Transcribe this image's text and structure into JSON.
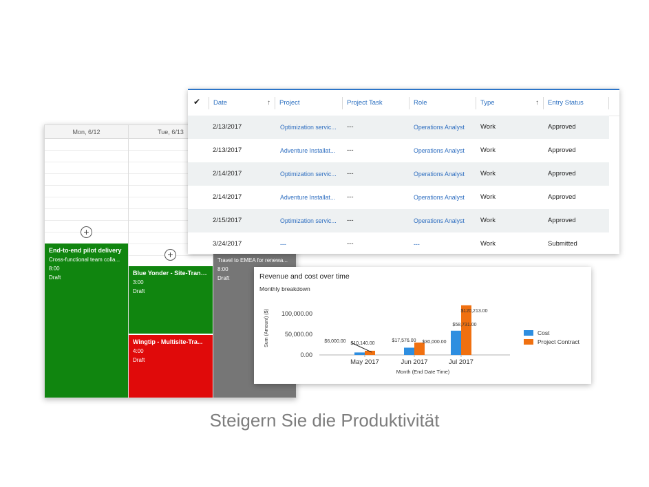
{
  "calendar": {
    "days": [
      "Mon, 6/12",
      "Tue, 6/13"
    ],
    "events": [
      {
        "title": "End-to-end pilot delivery",
        "line1": "Cross-functional team colla...",
        "hours": "8:00",
        "status": "Draft"
      },
      {
        "title": "Blue Yonder - Site-Trans...",
        "hours": "3:00",
        "status": "Draft"
      },
      {
        "title": "Wingtip - Multisite-Tra...",
        "hours": "4:00",
        "status": "Draft"
      },
      {
        "title": "",
        "line1": "Travel to EMEA for renewa...",
        "hours": "8:00",
        "status": "Draft"
      }
    ],
    "add_symbol": "+"
  },
  "grid": {
    "check_symbol": "✔",
    "sort_symbol": "↑",
    "columns": [
      "Date",
      "Project",
      "Project Task",
      "Role",
      "Type",
      "Entry Status"
    ],
    "rows": [
      {
        "date": "2/13/2017",
        "project": "Optimization servic...",
        "task": "---",
        "role": "Operations Analyst",
        "type": "Work",
        "status": "Approved"
      },
      {
        "date": "2/13/2017",
        "project": "Adventure Installat...",
        "task": "---",
        "role": "Operations Analyst",
        "type": "Work",
        "status": "Approved"
      },
      {
        "date": "2/14/2017",
        "project": "Optimization servic...",
        "task": "---",
        "role": "Operations Analyst",
        "type": "Work",
        "status": "Approved"
      },
      {
        "date": "2/14/2017",
        "project": "Adventure Installat...",
        "task": "---",
        "role": "Operations Analyst",
        "type": "Work",
        "status": "Approved"
      },
      {
        "date": "2/15/2017",
        "project": "Optimization servic...",
        "task": "---",
        "role": "Operations Analyst",
        "type": "Work",
        "status": "Approved"
      },
      {
        "date": "3/24/2017",
        "project": "---",
        "task": "---",
        "role": "---",
        "type": "Work",
        "status": "Submitted"
      }
    ]
  },
  "chart_data": {
    "type": "bar",
    "title": "Revenue and cost over time",
    "subtitle": "Monthly breakdown",
    "xlabel": "Month (End Date Time)",
    "ylabel": "Sum (Amount) ($)",
    "categories": [
      "May 2017",
      "Jun 2017",
      "Jul 2017"
    ],
    "series": [
      {
        "name": "Cost",
        "color": "#2e8ee0",
        "values": [
          6000.0,
          17576.0,
          58731.0
        ],
        "labels": [
          "$6,000.00",
          "$17,576.00",
          "$58,731.00"
        ]
      },
      {
        "name": "Project Contract",
        "color": "#f07010",
        "values": [
          10140.0,
          30000.0,
          120213.0
        ],
        "labels": [
          "$10,140.00",
          "$30,000.00",
          "$120,213.00"
        ]
      }
    ],
    "yticks": [
      0,
      50000,
      100000
    ],
    "ytick_labels": [
      "0.00",
      "50,000.00",
      "100,000.00"
    ],
    "ylim": [
      0,
      130000
    ],
    "grid": false,
    "legend": "right"
  },
  "caption": "Steigern Sie die Produktivität"
}
